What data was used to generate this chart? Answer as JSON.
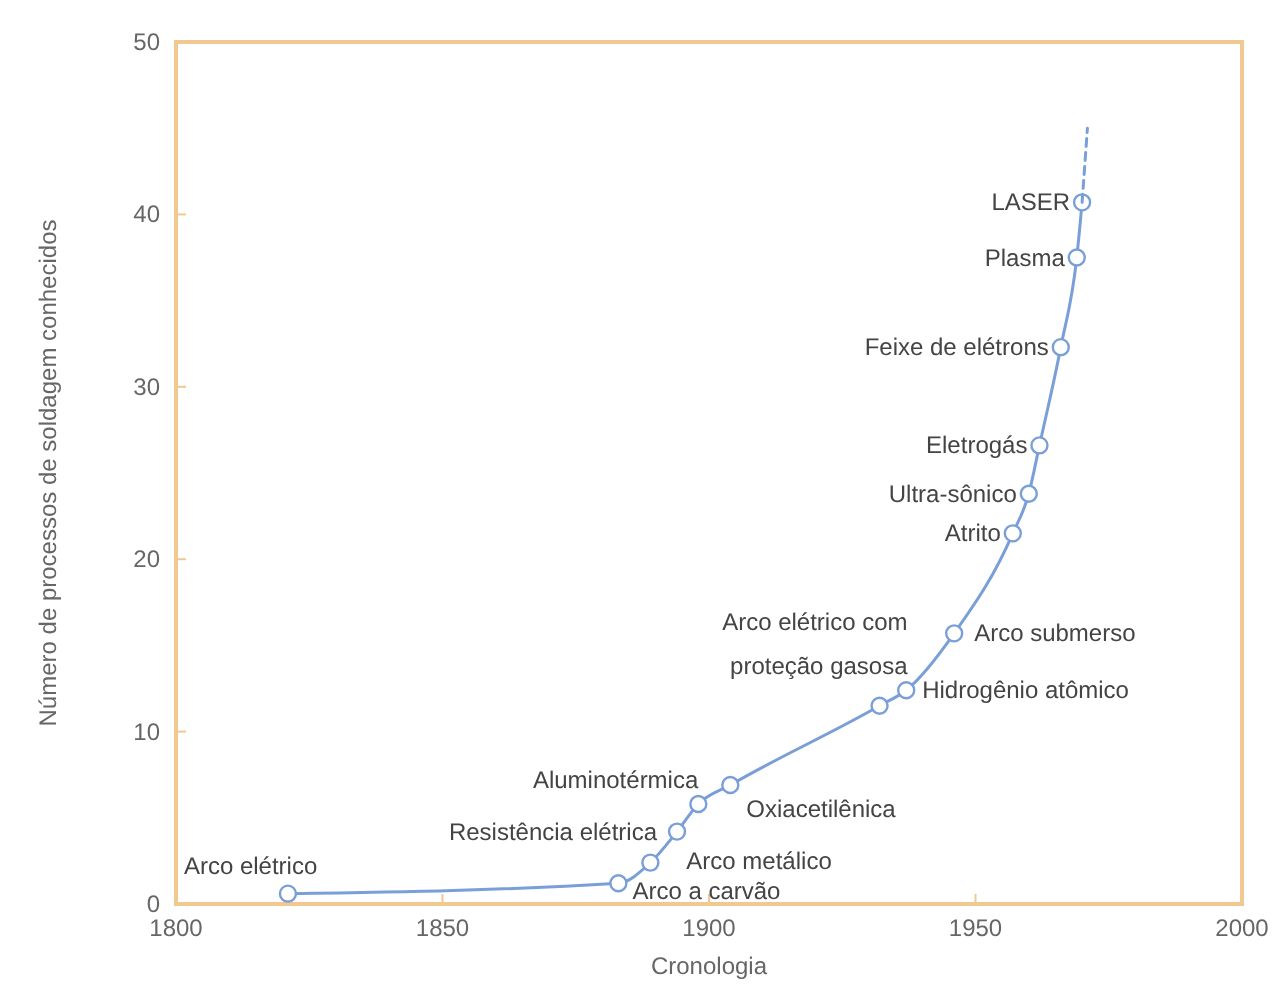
{
  "chart_data": {
    "type": "line",
    "xlabel": "Cronologia",
    "ylabel": "Número de processos de soldagem conhecidos",
    "xlim": [
      1800,
      2000
    ],
    "ylim": [
      0,
      50
    ],
    "xticks": [
      1800,
      1850,
      1900,
      1950,
      2000
    ],
    "yticks": [
      0,
      10,
      20,
      30,
      40,
      50
    ],
    "grid": false,
    "series": [
      {
        "color": "#7a9fd8",
        "marker": "circle",
        "x": [
          1821,
          1883,
          1889,
          1894,
          1898,
          1904,
          1932,
          1937,
          1946,
          1957,
          1960,
          1962,
          1966,
          1969,
          1970
        ],
        "values": [
          0.6,
          1.2,
          2.4,
          4.2,
          5.8,
          6.9,
          11.5,
          12.4,
          15.7,
          21.5,
          23.8,
          26.6,
          32.3,
          37.5,
          40.7
        ],
        "value_labels": [
          "Arco elétrico",
          "Arco a carvão",
          "Arco metálico",
          "Resistência elétrica",
          "Aluminotérmica",
          "Oxiacetilênica",
          "Arco elétrico com\nproteção gasosa",
          "Hidrogênio atômico",
          "Arco submerso",
          "Atrito",
          "Ultra-sônico",
          "Eletrogás",
          "Feixe de elétrons",
          "Plasma",
          "LASER"
        ]
      },
      {
        "color": "#7a9fd8",
        "marker": "none",
        "line_style": "dashed",
        "x": [
          1970,
          1971
        ],
        "values": [
          40.7,
          45
        ]
      }
    ]
  }
}
